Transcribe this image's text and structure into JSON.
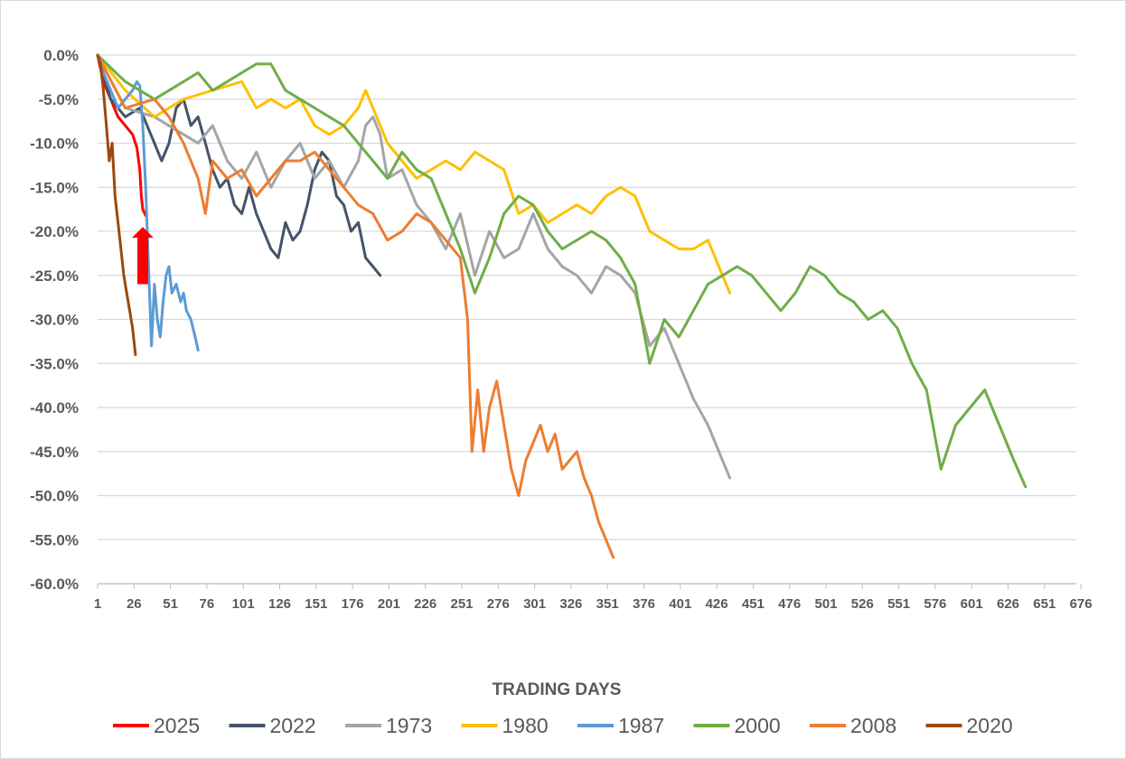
{
  "chart_data": {
    "type": "line",
    "title": "",
    "xlabel": "TRADING DAYS",
    "ylabel": "",
    "xlim": [
      1,
      690
    ],
    "ylim": [
      -60,
      0
    ],
    "x_ticks": [
      "1",
      "26",
      "51",
      "76",
      "101",
      "126",
      "151",
      "176",
      "201",
      "226",
      "251",
      "276",
      "301",
      "326",
      "351",
      "376",
      "401",
      "426",
      "451",
      "476",
      "501",
      "526",
      "551",
      "576",
      "601",
      "626",
      "651",
      "676"
    ],
    "y_ticks": [
      "0.0%",
      "-5.0%",
      "-10.0%",
      "-15.0%",
      "-20.0%",
      "-25.0%",
      "-30.0%",
      "-35.0%",
      "-40.0%",
      "-45.0%",
      "-50.0%",
      "-55.0%",
      "-60.0%"
    ],
    "grid": "horizontal",
    "legend": "bottom",
    "annotations": [
      {
        "type": "arrow",
        "color": "#ff0000",
        "direction": "up",
        "x": 32,
        "y_from": -26,
        "y_to": -19.5
      }
    ],
    "series": [
      {
        "name": "2025",
        "color": "#ff0000",
        "points": [
          [
            1,
            0
          ],
          [
            5,
            -3
          ],
          [
            10,
            -5
          ],
          [
            15,
            -7
          ],
          [
            20,
            -8
          ],
          [
            25,
            -9
          ],
          [
            28,
            -10.5
          ],
          [
            30,
            -13
          ],
          [
            31,
            -16
          ],
          [
            32,
            -17.5
          ],
          [
            34,
            -18.2
          ]
        ]
      },
      {
        "name": "2022",
        "color": "#44546a",
        "points": [
          [
            1,
            0
          ],
          [
            10,
            -5
          ],
          [
            20,
            -7
          ],
          [
            30,
            -6
          ],
          [
            35,
            -8
          ],
          [
            40,
            -10
          ],
          [
            45,
            -12
          ],
          [
            50,
            -10
          ],
          [
            55,
            -6
          ],
          [
            60,
            -5
          ],
          [
            65,
            -8
          ],
          [
            70,
            -7
          ],
          [
            75,
            -10
          ],
          [
            80,
            -13
          ],
          [
            85,
            -15
          ],
          [
            90,
            -14
          ],
          [
            95,
            -17
          ],
          [
            100,
            -18
          ],
          [
            105,
            -15
          ],
          [
            110,
            -18
          ],
          [
            115,
            -20
          ],
          [
            120,
            -22
          ],
          [
            125,
            -23
          ],
          [
            130,
            -19
          ],
          [
            135,
            -21
          ],
          [
            140,
            -20
          ],
          [
            145,
            -17
          ],
          [
            150,
            -13
          ],
          [
            155,
            -11
          ],
          [
            160,
            -12
          ],
          [
            165,
            -16
          ],
          [
            170,
            -17
          ],
          [
            175,
            -20
          ],
          [
            180,
            -19
          ],
          [
            185,
            -23
          ],
          [
            190,
            -24
          ],
          [
            195,
            -25
          ]
        ]
      },
      {
        "name": "1973",
        "color": "#a5a5a5",
        "points": [
          [
            1,
            0
          ],
          [
            20,
            -6
          ],
          [
            40,
            -7
          ],
          [
            60,
            -9
          ],
          [
            70,
            -10
          ],
          [
            80,
            -8
          ],
          [
            90,
            -12
          ],
          [
            100,
            -14
          ],
          [
            110,
            -11
          ],
          [
            120,
            -15
          ],
          [
            130,
            -12
          ],
          [
            140,
            -10
          ],
          [
            150,
            -14
          ],
          [
            160,
            -12
          ],
          [
            170,
            -15
          ],
          [
            180,
            -12
          ],
          [
            185,
            -8
          ],
          [
            190,
            -7
          ],
          [
            195,
            -9
          ],
          [
            200,
            -14
          ],
          [
            210,
            -13
          ],
          [
            220,
            -17
          ],
          [
            230,
            -19
          ],
          [
            240,
            -22
          ],
          [
            250,
            -18
          ],
          [
            260,
            -25
          ],
          [
            270,
            -20
          ],
          [
            280,
            -23
          ],
          [
            290,
            -22
          ],
          [
            300,
            -18
          ],
          [
            310,
            -22
          ],
          [
            320,
            -24
          ],
          [
            330,
            -25
          ],
          [
            340,
            -27
          ],
          [
            350,
            -24
          ],
          [
            360,
            -25
          ],
          [
            370,
            -27
          ],
          [
            380,
            -33
          ],
          [
            390,
            -31
          ],
          [
            400,
            -35
          ],
          [
            410,
            -39
          ],
          [
            420,
            -42
          ],
          [
            425,
            -44
          ],
          [
            430,
            -46
          ],
          [
            435,
            -48
          ]
        ]
      },
      {
        "name": "1980",
        "color": "#ffc000",
        "points": [
          [
            1,
            0
          ],
          [
            20,
            -4
          ],
          [
            40,
            -7
          ],
          [
            60,
            -5
          ],
          [
            80,
            -4
          ],
          [
            100,
            -3
          ],
          [
            110,
            -6
          ],
          [
            120,
            -5
          ],
          [
            130,
            -6
          ],
          [
            140,
            -5
          ],
          [
            150,
            -8
          ],
          [
            160,
            -9
          ],
          [
            170,
            -8
          ],
          [
            180,
            -6
          ],
          [
            185,
            -4
          ],
          [
            190,
            -6
          ],
          [
            200,
            -10
          ],
          [
            210,
            -12
          ],
          [
            220,
            -14
          ],
          [
            230,
            -13
          ],
          [
            240,
            -12
          ],
          [
            250,
            -13
          ],
          [
            260,
            -11
          ],
          [
            270,
            -12
          ],
          [
            280,
            -13
          ],
          [
            290,
            -18
          ],
          [
            300,
            -17
          ],
          [
            310,
            -19
          ],
          [
            320,
            -18
          ],
          [
            330,
            -17
          ],
          [
            340,
            -18
          ],
          [
            350,
            -16
          ],
          [
            360,
            -15
          ],
          [
            370,
            -16
          ],
          [
            380,
            -20
          ],
          [
            390,
            -21
          ],
          [
            400,
            -22
          ],
          [
            410,
            -22
          ],
          [
            420,
            -21
          ],
          [
            430,
            -25
          ],
          [
            435,
            -27
          ]
        ]
      },
      {
        "name": "1987",
        "color": "#5b9bd5",
        "points": [
          [
            1,
            0
          ],
          [
            5,
            -2
          ],
          [
            10,
            -4
          ],
          [
            15,
            -6
          ],
          [
            20,
            -5
          ],
          [
            25,
            -4
          ],
          [
            28,
            -3
          ],
          [
            30,
            -3.5
          ],
          [
            32,
            -8
          ],
          [
            34,
            -15
          ],
          [
            36,
            -24
          ],
          [
            38,
            -33
          ],
          [
            40,
            -26
          ],
          [
            42,
            -30
          ],
          [
            44,
            -32
          ],
          [
            46,
            -28
          ],
          [
            48,
            -25
          ],
          [
            50,
            -24
          ],
          [
            52,
            -27
          ],
          [
            55,
            -26
          ],
          [
            58,
            -28
          ],
          [
            60,
            -27
          ],
          [
            62,
            -29
          ],
          [
            65,
            -30
          ],
          [
            68,
            -32
          ],
          [
            70,
            -33.5
          ]
        ]
      },
      {
        "name": "2000",
        "color": "#70ad47",
        "points": [
          [
            1,
            0
          ],
          [
            20,
            -3
          ],
          [
            40,
            -5
          ],
          [
            60,
            -3
          ],
          [
            70,
            -2
          ],
          [
            80,
            -4
          ],
          [
            90,
            -3
          ],
          [
            100,
            -2
          ],
          [
            110,
            -1
          ],
          [
            120,
            -1
          ],
          [
            130,
            -4
          ],
          [
            140,
            -5
          ],
          [
            150,
            -6
          ],
          [
            160,
            -7
          ],
          [
            170,
            -8
          ],
          [
            180,
            -10
          ],
          [
            190,
            -12
          ],
          [
            200,
            -14
          ],
          [
            210,
            -11
          ],
          [
            220,
            -13
          ],
          [
            230,
            -14
          ],
          [
            240,
            -18
          ],
          [
            250,
            -22
          ],
          [
            260,
            -27
          ],
          [
            270,
            -23
          ],
          [
            280,
            -18
          ],
          [
            290,
            -16
          ],
          [
            300,
            -17
          ],
          [
            310,
            -20
          ],
          [
            320,
            -22
          ],
          [
            330,
            -21
          ],
          [
            340,
            -20
          ],
          [
            350,
            -21
          ],
          [
            360,
            -23
          ],
          [
            370,
            -26
          ],
          [
            380,
            -35
          ],
          [
            390,
            -30
          ],
          [
            400,
            -32
          ],
          [
            410,
            -29
          ],
          [
            420,
            -26
          ],
          [
            430,
            -25
          ],
          [
            440,
            -24
          ],
          [
            450,
            -25
          ],
          [
            460,
            -27
          ],
          [
            470,
            -29
          ],
          [
            480,
            -27
          ],
          [
            490,
            -24
          ],
          [
            500,
            -25
          ],
          [
            510,
            -27
          ],
          [
            520,
            -28
          ],
          [
            530,
            -30
          ],
          [
            540,
            -29
          ],
          [
            550,
            -31
          ],
          [
            560,
            -35
          ],
          [
            570,
            -38
          ],
          [
            580,
            -47
          ],
          [
            590,
            -42
          ],
          [
            600,
            -40
          ],
          [
            610,
            -38
          ],
          [
            620,
            -42
          ],
          [
            630,
            -46
          ],
          [
            638,
            -49
          ]
        ]
      },
      {
        "name": "2008",
        "color": "#ed7d31",
        "points": [
          [
            1,
            0
          ],
          [
            20,
            -6
          ],
          [
            40,
            -5
          ],
          [
            50,
            -7
          ],
          [
            60,
            -10
          ],
          [
            70,
            -14
          ],
          [
            75,
            -18
          ],
          [
            80,
            -12
          ],
          [
            90,
            -14
          ],
          [
            100,
            -13
          ],
          [
            110,
            -16
          ],
          [
            120,
            -14
          ],
          [
            130,
            -12
          ],
          [
            140,
            -12
          ],
          [
            150,
            -11
          ],
          [
            160,
            -13
          ],
          [
            170,
            -15
          ],
          [
            180,
            -17
          ],
          [
            190,
            -18
          ],
          [
            200,
            -21
          ],
          [
            210,
            -20
          ],
          [
            220,
            -18
          ],
          [
            230,
            -19
          ],
          [
            240,
            -21
          ],
          [
            250,
            -23
          ],
          [
            255,
            -30
          ],
          [
            258,
            -45
          ],
          [
            262,
            -38
          ],
          [
            266,
            -45
          ],
          [
            270,
            -40
          ],
          [
            275,
            -37
          ],
          [
            280,
            -42
          ],
          [
            285,
            -47
          ],
          [
            290,
            -50
          ],
          [
            295,
            -46
          ],
          [
            300,
            -44
          ],
          [
            305,
            -42
          ],
          [
            310,
            -45
          ],
          [
            315,
            -43
          ],
          [
            320,
            -47
          ],
          [
            325,
            -46
          ],
          [
            330,
            -45
          ],
          [
            335,
            -48
          ],
          [
            340,
            -50
          ],
          [
            345,
            -53
          ],
          [
            350,
            -55
          ],
          [
            355,
            -57
          ]
        ]
      },
      {
        "name": "2020",
        "color": "#9e480e",
        "points": [
          [
            1,
            0
          ],
          [
            3,
            -1
          ],
          [
            5,
            -4
          ],
          [
            7,
            -8
          ],
          [
            9,
            -12
          ],
          [
            11,
            -10
          ],
          [
            13,
            -16
          ],
          [
            15,
            -19
          ],
          [
            17,
            -22
          ],
          [
            19,
            -25
          ],
          [
            21,
            -27
          ],
          [
            23,
            -29
          ],
          [
            25,
            -31
          ],
          [
            27,
            -34
          ]
        ]
      }
    ]
  }
}
